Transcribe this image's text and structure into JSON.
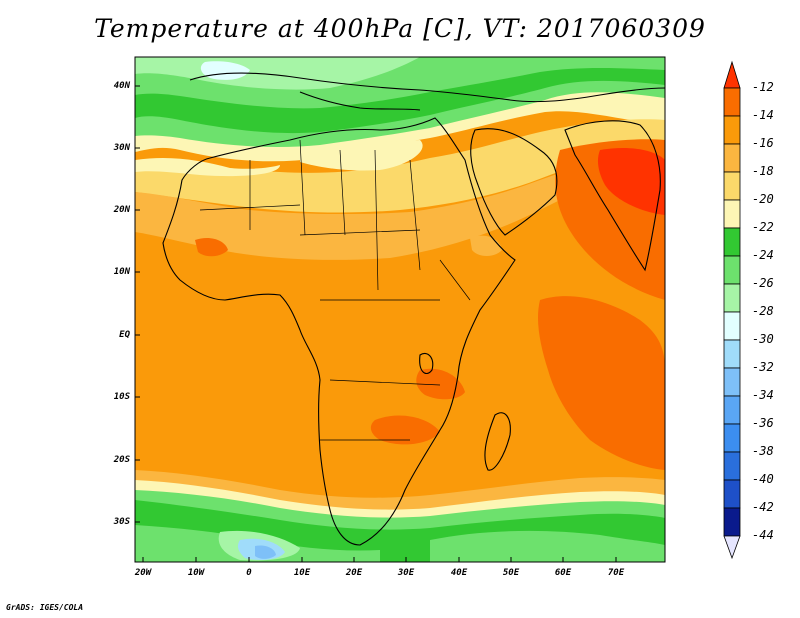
{
  "title": "Temperature at 400hPa [C], VT: 2017060309",
  "credit": "GrADS: IGES/COLA",
  "lat_labels": [
    "40N",
    "30N",
    "20N",
    "10N",
    "EQ",
    "10S",
    "20S",
    "30S"
  ],
  "lon_labels": [
    "20W",
    "10W",
    "0",
    "10E",
    "20E",
    "30E",
    "40E",
    "50E",
    "60E",
    "70E"
  ],
  "colorbar": {
    "levels": [
      "-12",
      "-14",
      "-16",
      "-18",
      "-20",
      "-22",
      "-24",
      "-26",
      "-28",
      "-30",
      "-32",
      "-34",
      "-36",
      "-38",
      "-40",
      "-42",
      "-44"
    ],
    "colors": [
      "#ff3300",
      "#f96d00",
      "#fa9a0a",
      "#fbb640",
      "#fbd96a",
      "#fdf6b5",
      "#32c832",
      "#6de16d",
      "#a6f5a6",
      "#e2ffff",
      "#a0dcfa",
      "#7ec0f8",
      "#5aa6f5",
      "#3c8ef0",
      "#2a6fdc",
      "#1e50c8",
      "#0a1a8c",
      "#e6e6ff"
    ]
  },
  "map": {
    "extent": {
      "lon_min": -20,
      "lon_max": 80,
      "lat_min": -37,
      "lat_max": 45
    },
    "colors": {
      "land_border": "#000000",
      "frame": "#000000"
    }
  }
}
